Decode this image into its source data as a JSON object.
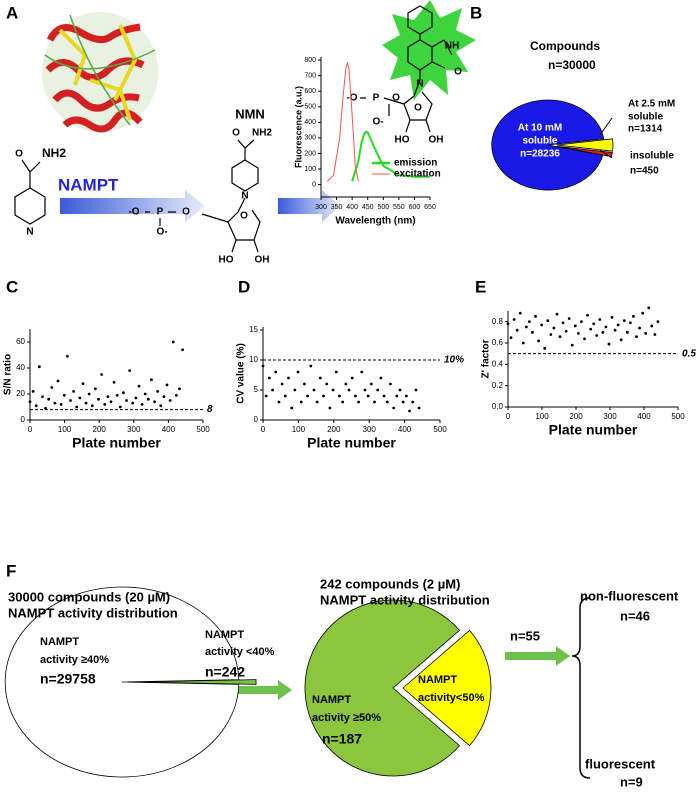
{
  "figure": {
    "panel_labels": [
      "A",
      "B",
      "C",
      "D",
      "E",
      "F"
    ]
  },
  "panel_a": {
    "enzyme": "NAMPT",
    "product": "NMN",
    "nicotinamide_atoms": [
      "O",
      "NH2",
      "N"
    ],
    "nmn_atoms": [
      "O",
      "NH2",
      "-O",
      "P",
      "O",
      "O-",
      "O",
      "N",
      "HO",
      "OH"
    ],
    "fluorophore_atoms": [
      "NH",
      "O",
      "N",
      "O",
      "-O",
      "P",
      "O",
      "O-",
      "HO",
      "OH"
    ]
  },
  "panel_f": {
    "flow_label": "n=55",
    "branches": [
      {
        "name": "non-fluorescent",
        "value_label": "n=46"
      },
      {
        "name": "fluorescent",
        "value_label": "n=9"
      }
    ]
  },
  "chart_data": [
    {
      "type": "line",
      "xlabel": "Wavelength (nm)",
      "ylabel": "Fluorescence (a.u.)",
      "xlim": [
        300,
        650
      ],
      "xticks": [
        300,
        350,
        400,
        450,
        500,
        550,
        600,
        650
      ],
      "ylim": [
        -80,
        820
      ],
      "yticks": [
        0,
        100,
        200,
        300,
        400,
        500,
        600,
        700,
        800
      ],
      "series": [
        {
          "name": "emission",
          "color": "#22dd22",
          "x": [
            400,
            420,
            430,
            440,
            445,
            450,
            460,
            480,
            500,
            550,
            600,
            650
          ],
          "values": [
            20,
            150,
            270,
            330,
            340,
            335,
            290,
            200,
            120,
            60,
            50,
            50
          ]
        },
        {
          "name": "excitation",
          "color": "#ee5555",
          "x": [
            320,
            340,
            360,
            370,
            380,
            385,
            390,
            400,
            410,
            420
          ],
          "values": [
            20,
            60,
            300,
            550,
            750,
            780,
            740,
            450,
            120,
            20
          ]
        }
      ]
    },
    {
      "type": "pie",
      "title": "Compounds",
      "subtitle": "n=30000",
      "labels": [
        [
          "At 10 mM",
          "soluble"
        ],
        [
          "At 2.5 mM",
          "soluble"
        ],
        [
          "insoluble"
        ]
      ],
      "values": [
        28236,
        1314,
        450
      ],
      "value_labels": [
        "n=28236",
        "n=1314",
        "n=450"
      ],
      "colors": [
        "#1a1ae8",
        "#ffff00",
        "#e02020"
      ]
    },
    {
      "type": "scatter",
      "xlabel": "Plate number",
      "ylabel": "S/N ratio",
      "xlim": [
        0,
        500
      ],
      "xticks": [
        0,
        100,
        200,
        300,
        400,
        500
      ],
      "ylim": [
        0,
        70
      ],
      "yticks": [
        0,
        20,
        40,
        60
      ],
      "threshold": 8,
      "x": [
        0,
        9,
        18,
        27,
        36,
        45,
        54,
        63,
        72,
        81,
        90,
        99,
        108,
        117,
        126,
        135,
        144,
        153,
        162,
        171,
        180,
        189,
        198,
        207,
        216,
        225,
        234,
        243,
        252,
        261,
        270,
        279,
        288,
        297,
        306,
        315,
        324,
        333,
        342,
        351,
        360,
        369,
        378,
        387,
        396,
        405,
        414,
        423,
        432,
        441
      ],
      "values": [
        14,
        22,
        11,
        41,
        18,
        9,
        16,
        25,
        13,
        30,
        12,
        19,
        49,
        15,
        22,
        10,
        17,
        28,
        13,
        20,
        11,
        24,
        16,
        35,
        12,
        18,
        14,
        29,
        19,
        10,
        21,
        15,
        38,
        13,
        17,
        26,
        12,
        20,
        16,
        31,
        14,
        22,
        11,
        18,
        27,
        15,
        60,
        19,
        24,
        54
      ]
    },
    {
      "type": "scatter",
      "xlabel": "Plate number",
      "ylabel": "CV value (%)",
      "xlim": [
        0,
        500
      ],
      "xticks": [
        0,
        100,
        200,
        300,
        400,
        500
      ],
      "ylim": [
        0,
        15.5
      ],
      "yticks": [
        0,
        5,
        10,
        15
      ],
      "threshold": {
        "value": 10,
        "label": "10%"
      },
      "x": [
        0,
        9,
        18,
        27,
        36,
        45,
        54,
        63,
        72,
        81,
        90,
        99,
        108,
        117,
        126,
        135,
        144,
        153,
        162,
        171,
        180,
        189,
        198,
        207,
        216,
        225,
        234,
        243,
        252,
        261,
        270,
        279,
        288,
        297,
        306,
        315,
        324,
        333,
        342,
        351,
        360,
        369,
        378,
        387,
        396,
        405,
        414,
        423,
        432,
        441
      ],
      "values": [
        9,
        4,
        7,
        5,
        8,
        3,
        6,
        4,
        7,
        2,
        5,
        8,
        3,
        6,
        4,
        9,
        5,
        3,
        7,
        4,
        6,
        2,
        5,
        8,
        4,
        3,
        6,
        5,
        7,
        4,
        3,
        8,
        5,
        4,
        6,
        3,
        5,
        7,
        4,
        3,
        6,
        2,
        4,
        5,
        3,
        4,
        1.5,
        3,
        5,
        2
      ]
    },
    {
      "type": "scatter",
      "xlabel": "Plate number",
      "ylabel": "Z' factor",
      "xlim": [
        0,
        500
      ],
      "xticks": [
        0,
        100,
        200,
        300,
        400,
        500
      ],
      "ylim": [
        0,
        0.9
      ],
      "yticks": [
        {
          "value": 0,
          "label": "0.0"
        },
        0.2,
        0.4,
        0.6,
        0.8
      ],
      "threshold": 0.5,
      "x": [
        0,
        9,
        18,
        27,
        36,
        45,
        54,
        63,
        72,
        81,
        90,
        99,
        108,
        117,
        126,
        135,
        144,
        153,
        162,
        171,
        180,
        189,
        198,
        207,
        216,
        225,
        234,
        243,
        252,
        261,
        270,
        279,
        288,
        297,
        306,
        315,
        324,
        333,
        342,
        351,
        360,
        369,
        378,
        387,
        396,
        405,
        414,
        423,
        432,
        441
      ],
      "values": [
        0.78,
        0.65,
        0.82,
        0.72,
        0.88,
        0.6,
        0.75,
        0.8,
        0.7,
        0.85,
        0.62,
        0.77,
        0.55,
        0.81,
        0.68,
        0.74,
        0.87,
        0.66,
        0.79,
        0.71,
        0.83,
        0.58,
        0.76,
        0.69,
        0.8,
        0.64,
        0.86,
        0.73,
        0.78,
        0.67,
        0.82,
        0.7,
        0.75,
        0.59,
        0.84,
        0.72,
        0.77,
        0.63,
        0.81,
        0.7,
        0.79,
        0.85,
        0.66,
        0.74,
        0.88,
        0.69,
        0.93,
        0.76,
        0.68,
        0.8
      ]
    },
    {
      "type": "pie",
      "title": [
        "30000 compounds (20 µM)",
        "NAMPT activity distribution"
      ],
      "labels": [
        [
          "NAMPT",
          "activity ≥40%"
        ],
        [
          "NAMPT",
          "activity <40%"
        ]
      ],
      "values": [
        29758,
        242
      ],
      "value_labels": [
        "n=29758",
        "n=242"
      ],
      "colors": [
        "#ffffff",
        "#7ac143"
      ]
    },
    {
      "type": "pie",
      "title": [
        "242 compounds (2 µM)",
        "NAMPT activity distribution"
      ],
      "labels": [
        [
          "NAMPT",
          "activity ≥50%"
        ],
        [
          "NAMPT",
          "activity<50%"
        ]
      ],
      "values": [
        187,
        55
      ],
      "value_labels": [
        "n=187",
        null
      ],
      "colors": [
        "#8cc63f",
        "#ffff00"
      ]
    }
  ]
}
